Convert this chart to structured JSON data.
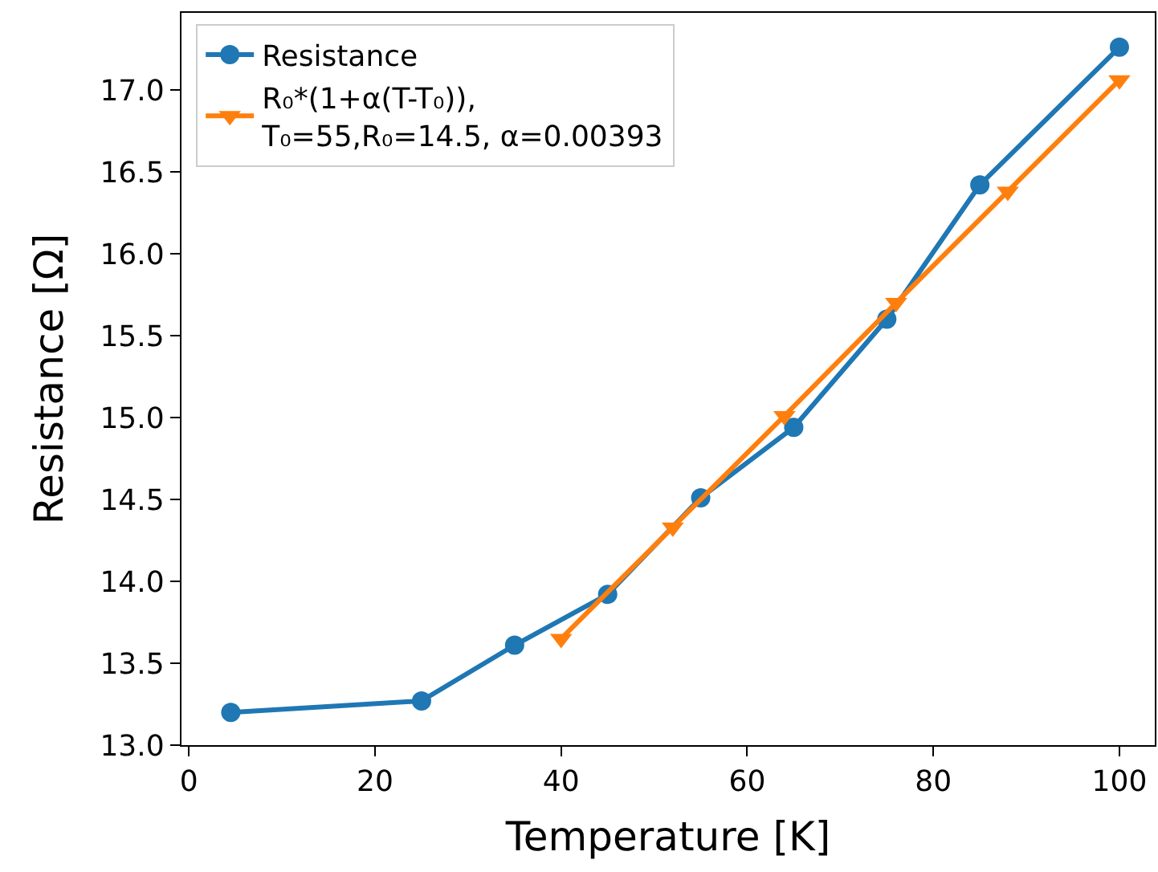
{
  "chart_data": {
    "type": "line",
    "xlabel": "Temperature [K]",
    "ylabel": "Resistance [Ω]",
    "xlim": [
      -0.8,
      103.8
    ],
    "xticks": [
      0,
      20,
      40,
      60,
      80,
      100
    ],
    "ylim": [
      13.0,
      17.47
    ],
    "yticks": [
      {
        "value": 13.0,
        "label": "13.0"
      },
      {
        "value": 13.5,
        "label": "13.5"
      },
      {
        "value": 14.0,
        "label": "14.0"
      },
      {
        "value": 14.5,
        "label": "14.5"
      },
      {
        "value": 15.0,
        "label": "15.0"
      },
      {
        "value": 15.5,
        "label": "15.5"
      },
      {
        "value": 16.0,
        "label": "16.0"
      },
      {
        "value": 16.5,
        "label": "16.5"
      },
      {
        "value": 17.0,
        "label": "17.0"
      }
    ],
    "legend": "top left",
    "line_style": "solid",
    "series": [
      {
        "name": "Resistance",
        "color": "#1f77b4",
        "marker": "circle",
        "x": [
          4.5,
          25,
          35,
          45,
          55,
          65,
          75,
          85,
          100
        ],
        "values": [
          13.2,
          13.27,
          13.61,
          13.92,
          14.51,
          14.94,
          15.6,
          16.42,
          17.26
        ]
      },
      {
        "name": "R₀*(1+α(T-T₀)),\nT₀=55,R₀=14.5, α=0.00393",
        "color": "#ff7f0e",
        "marker": "triangle",
        "x": [
          40,
          52,
          64,
          76,
          88,
          100
        ],
        "values": [
          13.65,
          14.33,
          15.01,
          15.7,
          16.38,
          17.06
        ]
      }
    ]
  }
}
